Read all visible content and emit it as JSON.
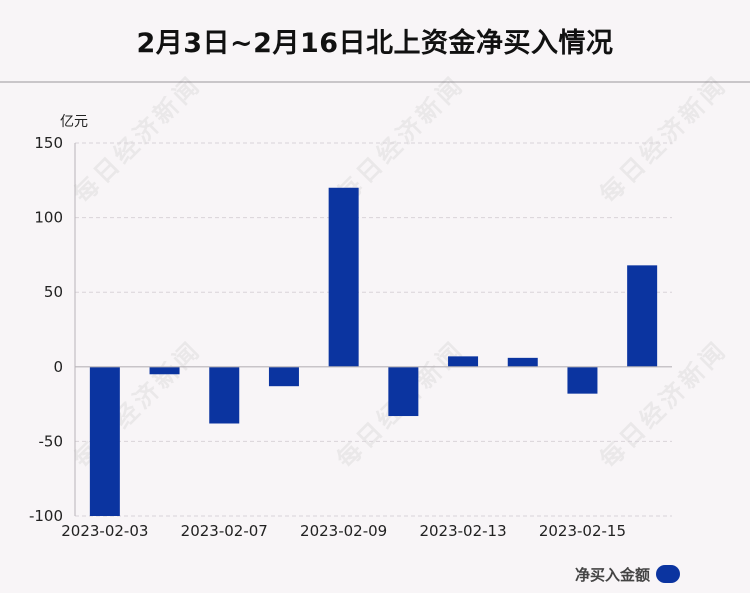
{
  "title": "2月3日~2月16日北上资金净买入情况",
  "unit_label": "亿元",
  "legend_label": "净买入金额",
  "watermark_text": "每日经济新闻",
  "colors": {
    "bar": "#0b34a0",
    "grid": "#d9d4d9",
    "axis": "#b8b4b8",
    "text": "#222222"
  },
  "chart_data": {
    "type": "bar",
    "categories": [
      "2023-02-03",
      "2023-02-06",
      "2023-02-07",
      "2023-02-08",
      "2023-02-09",
      "2023-02-10",
      "2023-02-13",
      "2023-02-14",
      "2023-02-15",
      "2023-02-16"
    ],
    "x_tick_labels": [
      "2023-02-03",
      "2023-02-07",
      "2023-02-09",
      "2023-02-13",
      "2023-02-15"
    ],
    "series": [
      {
        "name": "净买入金额",
        "values": [
          -100,
          -5,
          -38,
          -13,
          120,
          -33,
          7,
          6,
          -18,
          68
        ]
      }
    ],
    "y_ticks": [
      150,
      100,
      50,
      0,
      -50,
      -100
    ],
    "ylim": [
      -100,
      150
    ],
    "ylabel": "亿元",
    "grid": true,
    "legend": "bottom-right"
  }
}
